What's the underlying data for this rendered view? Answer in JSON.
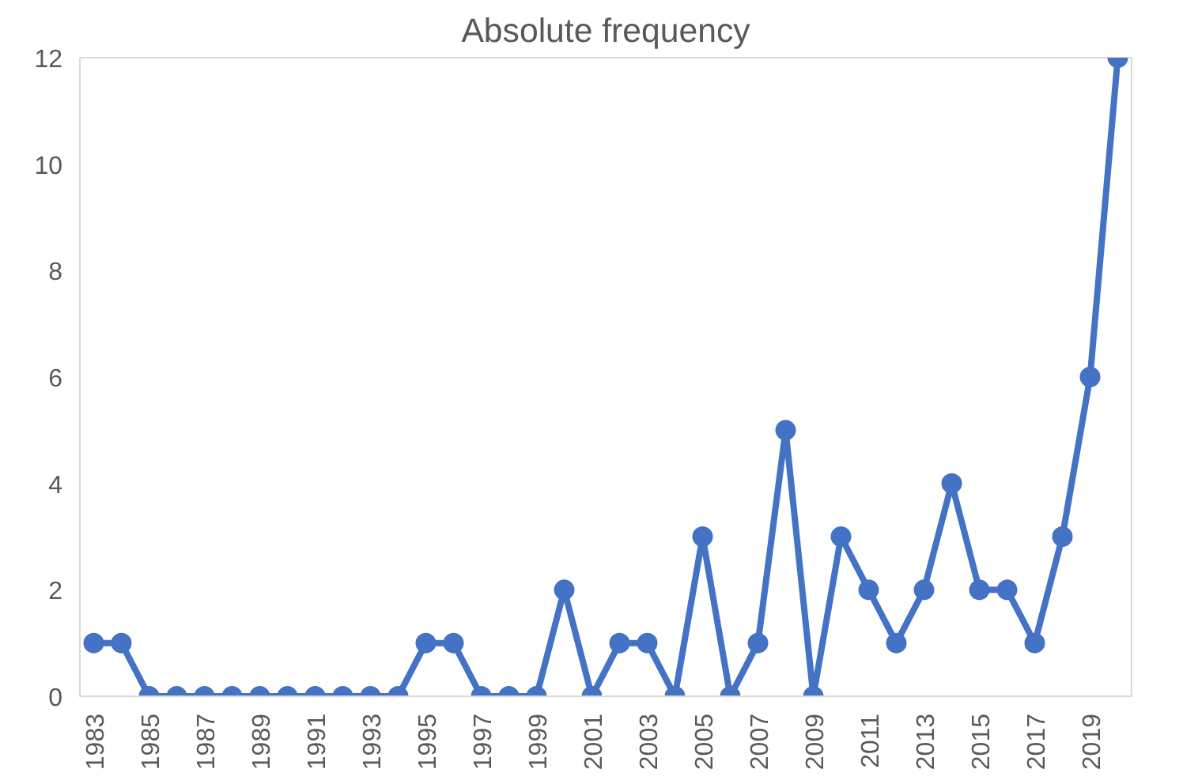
{
  "chart_data": {
    "type": "line",
    "title": "Absolute frequency",
    "categories": [
      "1983",
      null,
      "1985",
      null,
      "1987",
      null,
      "1989",
      null,
      "1991",
      null,
      "1993",
      null,
      "1995",
      null,
      "1997",
      null,
      "1999",
      null,
      "2001",
      null,
      "2003",
      null,
      "2005",
      null,
      "2007",
      null,
      "2009",
      null,
      "2011",
      null,
      "2013",
      null,
      "2015",
      null,
      "2017",
      null,
      "2019",
      null
    ],
    "series": [
      {
        "color": "#4472c4",
        "values": [
          1,
          1,
          0,
          0,
          0,
          0,
          0,
          0,
          0,
          0,
          0,
          0,
          1,
          1,
          0,
          0,
          0,
          2,
          0,
          1,
          1,
          0,
          3,
          0,
          1,
          5,
          0,
          3,
          2,
          1,
          2,
          4,
          2,
          2,
          1,
          3,
          6,
          12
        ]
      }
    ],
    "ylim": [
      0,
      12
    ],
    "yticks": [
      0,
      2,
      4,
      6,
      8,
      10,
      12
    ],
    "grid": false,
    "marker": "circle",
    "line_style": "solid"
  }
}
